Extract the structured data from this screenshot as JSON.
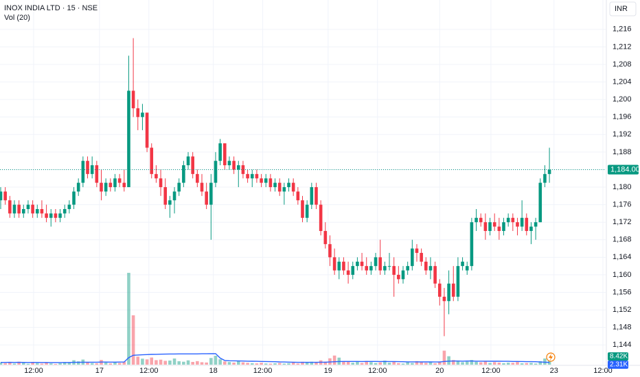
{
  "chart_data": {
    "type": "candlestick",
    "title": "INOX INDIA LTD · 15 · NSE",
    "volume_title": "Vol (20)",
    "currency": "INR",
    "up_color": "#089981",
    "down_color": "#f23645",
    "volume_ma_color": "#2962ff",
    "grid": true,
    "open": [
      1177,
      1179,
      1177,
      1174,
      1176,
      1174,
      1175,
      1176,
      1174,
      1175,
      1174,
      1173,
      1174,
      1173,
      1174,
      1175,
      1176,
      1179,
      1181,
      1186,
      1183,
      1185,
      1181,
      1179,
      1181,
      1180,
      1182,
      1181,
      1180,
      1202,
      1198,
      1196,
      1197,
      1189,
      1183,
      1182,
      1180,
      1176,
      1177,
      1179,
      1181,
      1185,
      1187,
      1183,
      1181,
      1179,
      1176,
      1181,
      1186,
      1190,
      1185,
      1186,
      1184,
      1185,
      1183,
      1182,
      1183,
      1182,
      1181,
      1182,
      1180,
      1181,
      1179,
      1180,
      1181,
      1179,
      1177,
      1173,
      1176,
      1180,
      1176,
      1170,
      1167,
      1164,
      1161,
      1163,
      1161,
      1160,
      1162,
      1163,
      1162,
      1161,
      1162,
      1164,
      1161,
      1162,
      1162,
      1160,
      1159,
      1161,
      1162,
      1166,
      1165,
      1163,
      1161,
      1162,
      1158,
      1155,
      1154,
      1158,
      1155,
      1162,
      1161,
      1162,
      1172,
      1173,
      1172,
      1170,
      1172,
      1171,
      1170,
      1172,
      1173,
      1172,
      1171,
      1173,
      1170,
      1171,
      1172,
      1181,
      1183
    ],
    "high": [
      1180,
      1180,
      1178,
      1177,
      1177,
      1176,
      1177,
      1177,
      1176,
      1177,
      1176,
      1175,
      1175,
      1175,
      1176,
      1177,
      1180,
      1182,
      1187,
      1187,
      1187,
      1186,
      1184,
      1182,
      1182,
      1183,
      1183,
      1184,
      1210,
      1214,
      1200,
      1199,
      1197,
      1190,
      1185,
      1184,
      1182,
      1178,
      1180,
      1182,
      1186,
      1188,
      1188,
      1184,
      1183,
      1181,
      1183,
      1188,
      1191,
      1190,
      1187,
      1187,
      1186,
      1186,
      1184,
      1184,
      1184,
      1183,
      1183,
      1183,
      1182,
      1182,
      1181,
      1182,
      1182,
      1180,
      1178,
      1177,
      1181,
      1181,
      1177,
      1172,
      1169,
      1166,
      1164,
      1164,
      1163,
      1163,
      1164,
      1165,
      1164,
      1163,
      1165,
      1168,
      1163,
      1165,
      1164,
      1162,
      1162,
      1163,
      1168,
      1167,
      1166,
      1164,
      1164,
      1163,
      1159,
      1157,
      1161,
      1162,
      1164,
      1164,
      1163,
      1173,
      1175,
      1174,
      1174,
      1173,
      1174,
      1173,
      1173,
      1174,
      1174,
      1173,
      1177,
      1174,
      1172,
      1173,
      1182,
      1185,
      1189
    ],
    "low": [
      1175,
      1176,
      1173,
      1173,
      1173,
      1173,
      1174,
      1173,
      1173,
      1173,
      1172,
      1171,
      1172,
      1172,
      1173,
      1174,
      1175,
      1178,
      1180,
      1182,
      1182,
      1180,
      1177,
      1178,
      1179,
      1179,
      1180,
      1179,
      1180,
      1196,
      1193,
      1193,
      1188,
      1182,
      1181,
      1178,
      1175,
      1173,
      1174,
      1178,
      1180,
      1184,
      1182,
      1180,
      1178,
      1175,
      1168,
      1180,
      1185,
      1184,
      1184,
      1183,
      1180,
      1182,
      1181,
      1180,
      1181,
      1180,
      1180,
      1179,
      1179,
      1178,
      1176,
      1179,
      1178,
      1176,
      1172,
      1172,
      1175,
      1175,
      1169,
      1166,
      1162,
      1160,
      1159,
      1160,
      1158,
      1159,
      1161,
      1161,
      1160,
      1160,
      1161,
      1160,
      1160,
      1161,
      1155,
      1158,
      1158,
      1160,
      1161,
      1163,
      1162,
      1160,
      1159,
      1157,
      1153,
      1146,
      1151,
      1154,
      1154,
      1161,
      1160,
      1161,
      1170,
      1171,
      1168,
      1169,
      1170,
      1168,
      1169,
      1171,
      1170,
      1169,
      1170,
      1169,
      1167,
      1168,
      1172,
      1180,
      1181
    ],
    "close": [
      1179,
      1177,
      1174,
      1176,
      1174,
      1175,
      1176,
      1174,
      1175,
      1174,
      1173,
      1174,
      1173,
      1174,
      1175,
      1176,
      1179,
      1181,
      1186,
      1183,
      1185,
      1181,
      1179,
      1181,
      1180,
      1182,
      1181,
      1180,
      1202,
      1198,
      1196,
      1197,
      1189,
      1183,
      1182,
      1180,
      1176,
      1177,
      1179,
      1181,
      1185,
      1187,
      1183,
      1181,
      1179,
      1176,
      1181,
      1186,
      1190,
      1185,
      1186,
      1184,
      1185,
      1183,
      1182,
      1183,
      1182,
      1181,
      1182,
      1180,
      1181,
      1179,
      1180,
      1181,
      1179,
      1177,
      1173,
      1176,
      1180,
      1176,
      1170,
      1167,
      1164,
      1161,
      1163,
      1161,
      1160,
      1162,
      1163,
      1162,
      1161,
      1162,
      1164,
      1161,
      1162,
      1162,
      1160,
      1159,
      1161,
      1162,
      1166,
      1165,
      1163,
      1161,
      1162,
      1158,
      1155,
      1154,
      1158,
      1155,
      1162,
      1163,
      1162,
      1172,
      1173,
      1172,
      1170,
      1172,
      1171,
      1170,
      1172,
      1173,
      1172,
      1171,
      1173,
      1170,
      1171,
      1172,
      1181,
      1183,
      1184
    ],
    "volume": [
      2100,
      1500,
      2800,
      1200,
      3000,
      1800,
      900,
      2400,
      1600,
      1100,
      2000,
      1300,
      700,
      1500,
      2600,
      1900,
      4500,
      3400,
      5200,
      2200,
      1600,
      1400,
      4800,
      2100,
      1300,
      2400,
      1700,
      3100,
      93800,
      50400,
      8200,
      6100,
      5400,
      7300,
      4600,
      5100,
      3900,
      4200,
      6300,
      3500,
      3000,
      4400,
      2800,
      3600,
      2500,
      2200,
      6800,
      9100,
      5500,
      3300,
      2700,
      2100,
      3900,
      2400,
      1800,
      1500,
      1300,
      1900,
      1200,
      1000,
      1400,
      1700,
      1100,
      1500,
      2300,
      1200,
      2900,
      2400,
      3000,
      2700,
      4400,
      3100,
      6500,
      9300,
      7200,
      3600,
      2800,
      2000,
      3300,
      1700,
      3800,
      2600,
      1700,
      2300,
      4100,
      2000,
      3000,
      1500,
      1100,
      2600,
      1700,
      3600,
      2400,
      1800,
      2800,
      1400,
      3200,
      14300,
      8600,
      4700,
      3400,
      2500,
      3100,
      4800,
      2900,
      2400,
      3500,
      1800,
      2600,
      2100,
      1500,
      2000,
      1900,
      2700,
      1400,
      1600,
      1800,
      1100,
      3500,
      6300,
      8420
    ],
    "volume_ma": [
      2300,
      2300,
      2350,
      2300,
      2350,
      2300,
      2250,
      2300,
      2300,
      2250,
      2250,
      2200,
      2200,
      2200,
      2250,
      2250,
      2350,
      2400,
      2550,
      2550,
      2500,
      2500,
      2650,
      2650,
      2600,
      2600,
      2650,
      2700,
      7200,
      9600,
      9900,
      10100,
      10300,
      10500,
      10600,
      10700,
      10800,
      10900,
      10900,
      11000,
      11000,
      11000,
      11000,
      11000,
      11100,
      11100,
      11200,
      11300,
      6700,
      4300,
      4000,
      3900,
      3800,
      3700,
      3600,
      3500,
      3400,
      3300,
      3200,
      3100,
      3000,
      2800,
      2700,
      2600,
      2500,
      2400,
      2400,
      2400,
      2400,
      2400,
      2500,
      2500,
      2700,
      3000,
      3200,
      3300,
      3300,
      3300,
      3300,
      3200,
      3300,
      3300,
      3300,
      3200,
      3300,
      3200,
      3200,
      3100,
      3000,
      2900,
      2900,
      2900,
      2800,
      2800,
      2800,
      2700,
      2700,
      3300,
      3600,
      3700,
      3700,
      3600,
      3700,
      3700,
      3600,
      3600,
      3600,
      3500,
      3500,
      3500,
      3400,
      3400,
      3300,
      3300,
      3200,
      3100,
      3100,
      3000,
      2700,
      2500,
      2310
    ],
    "last_price": {
      "value": 1184,
      "label": "1,184.00"
    },
    "last_volume": {
      "value": 8420,
      "label": "8.42K"
    },
    "last_volume_ma": {
      "value": 2310,
      "label": "2.31K"
    },
    "ylim": [
      1139.5,
      1222.7
    ],
    "yticks": [
      {
        "value": 1144,
        "label": "1,144"
      },
      {
        "value": 1148,
        "label": "1,148"
      },
      {
        "value": 1152,
        "label": "1,152"
      },
      {
        "value": 1156,
        "label": "1,156"
      },
      {
        "value": 1160,
        "label": "1,160"
      },
      {
        "value": 1164,
        "label": "1,164"
      },
      {
        "value": 1168,
        "label": "1,168"
      },
      {
        "value": 1172,
        "label": "1,172"
      },
      {
        "value": 1176,
        "label": "1,176"
      },
      {
        "value": 1180,
        "label": "1,180"
      },
      {
        "value": 1184,
        "label": "1,184"
      },
      {
        "value": 1188,
        "label": "1,188"
      },
      {
        "value": 1192,
        "label": "1,192"
      },
      {
        "value": 1196,
        "label": "1,196"
      },
      {
        "value": 1200,
        "label": "1,200"
      },
      {
        "value": 1204,
        "label": "1,204"
      },
      {
        "value": 1208,
        "label": "1,208"
      },
      {
        "value": 1212,
        "label": "1,212"
      },
      {
        "value": 1216,
        "label": "1,216"
      }
    ],
    "xlim": [
      -0.15,
      132.3
    ],
    "xticks": [
      {
        "value": 7.2,
        "label": "12:00"
      },
      {
        "value": 21.6,
        "label": "17"
      },
      {
        "value": 32.4,
        "label": "12:00"
      },
      {
        "value": 46.5,
        "label": "18"
      },
      {
        "value": 57.3,
        "label": "12:00"
      },
      {
        "value": 71.6,
        "label": "19"
      },
      {
        "value": 82.4,
        "label": "12:00"
      },
      {
        "value": 96,
        "label": "20"
      },
      {
        "value": 107.2,
        "label": "12:00"
      },
      {
        "value": 121,
        "label": "23"
      },
      {
        "value": 131.7,
        "label": "12:00"
      }
    ]
  }
}
